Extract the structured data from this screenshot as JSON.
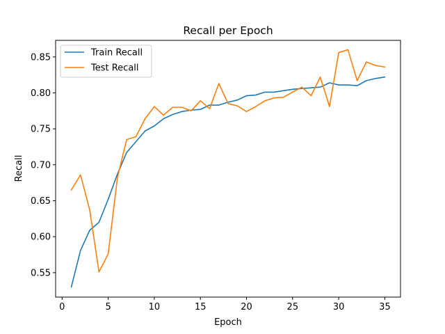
{
  "chart_data": {
    "type": "line",
    "title": "Recall per Epoch",
    "xlabel": "Epoch",
    "ylabel": "Recall",
    "xlim": [
      -0.7,
      36.7
    ],
    "ylim": [
      0.516,
      0.873
    ],
    "xticks": [
      0,
      5,
      10,
      15,
      20,
      25,
      30,
      35
    ],
    "yticks": [
      0.55,
      0.6,
      0.65,
      0.7,
      0.75,
      0.8,
      0.85
    ],
    "ytick_labels": [
      "0.55",
      "0.60",
      "0.65",
      "0.70",
      "0.75",
      "0.80",
      "0.85"
    ],
    "grid": false,
    "legend_position": "top-left",
    "x": [
      1,
      2,
      3,
      4,
      5,
      6,
      7,
      8,
      9,
      10,
      11,
      12,
      13,
      14,
      15,
      16,
      17,
      18,
      19,
      20,
      21,
      22,
      23,
      24,
      25,
      26,
      27,
      28,
      29,
      30,
      31,
      32,
      33,
      34,
      35
    ],
    "series": [
      {
        "name": "Train Recall",
        "color": "#1f77b4",
        "values": [
          0.53,
          0.581,
          0.609,
          0.62,
          0.652,
          0.687,
          0.717,
          0.732,
          0.747,
          0.754,
          0.764,
          0.77,
          0.774,
          0.776,
          0.777,
          0.783,
          0.783,
          0.787,
          0.79,
          0.796,
          0.797,
          0.801,
          0.801,
          0.803,
          0.805,
          0.806,
          0.807,
          0.808,
          0.814,
          0.811,
          0.811,
          0.81,
          0.817,
          0.82,
          0.822
        ]
      },
      {
        "name": "Test Recall",
        "color": "#ff7f0e",
        "values": [
          0.665,
          0.686,
          0.637,
          0.551,
          0.576,
          0.682,
          0.735,
          0.739,
          0.764,
          0.781,
          0.769,
          0.78,
          0.78,
          0.775,
          0.789,
          0.778,
          0.813,
          0.785,
          0.782,
          0.774,
          0.781,
          0.789,
          0.793,
          0.794,
          0.801,
          0.808,
          0.796,
          0.822,
          0.781,
          0.856,
          0.86,
          0.817,
          0.843,
          0.838,
          0.836
        ]
      }
    ]
  }
}
